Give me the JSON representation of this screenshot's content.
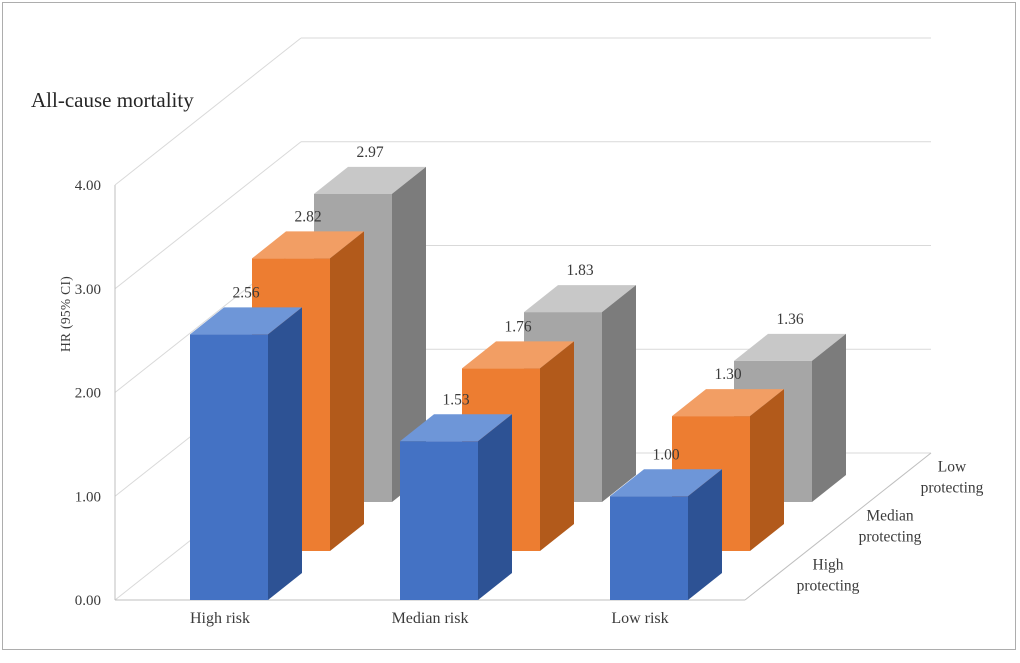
{
  "chart_data": {
    "type": "bar",
    "projection": "3d-column",
    "title": "All-cause mortality",
    "ylabel": "HR (95% CI)",
    "categories": [
      "High risk",
      "Median risk",
      "Low risk"
    ],
    "series": [
      {
        "name": "High protecting",
        "values": [
          2.56,
          1.53,
          1.0
        ],
        "colors": {
          "front": "#4472C4",
          "top": "#6E96D8",
          "side": "#2D5294"
        }
      },
      {
        "name": "Median protecting",
        "values": [
          2.82,
          1.76,
          1.3
        ],
        "colors": {
          "front": "#ED7D31",
          "top": "#F29E64",
          "side": "#B25A1B"
        }
      },
      {
        "name": "Low protecting",
        "values": [
          2.97,
          1.83,
          1.36
        ],
        "colors": {
          "front": "#A6A6A6",
          "top": "#C8C8C8",
          "side": "#7C7C7C"
        }
      }
    ],
    "ylim": [
      0,
      4
    ],
    "ytick_values": [
      0,
      1,
      2,
      3,
      4
    ],
    "ytick_labels": [
      "0.00",
      "1.00",
      "2.00",
      "3.00",
      "4.00"
    ],
    "value_label_decimals": 2,
    "grid": true,
    "legend_position": "depth-axis-right",
    "colors": {
      "grid": "#D9D9D9",
      "axis": "#BFBFBF",
      "text": "#3B3B3B",
      "title": "#262626"
    }
  }
}
